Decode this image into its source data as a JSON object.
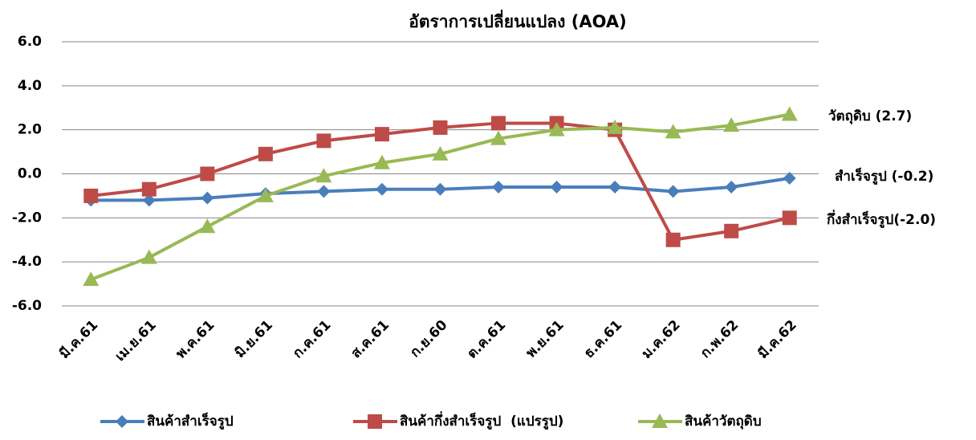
{
  "chart_data": {
    "type": "line",
    "title": "อัตราการเปลี่ยนแปลง (AOA)",
    "categories": [
      "มี.ค.61",
      "เม.ย.61",
      "พ.ค.61",
      "มิ.ย.61",
      "ก.ค.61",
      "ส.ค.61",
      "ก.ย.60",
      "ต.ค.61",
      "พ.ย.61",
      "ธ.ค.61",
      "ม.ค.62",
      "ก.พ.62",
      "มี.ค.62"
    ],
    "series": [
      {
        "name": "สินค้าสำเร็จรูป",
        "color": "#4a7ebb",
        "marker": "diamond",
        "values": [
          -1.2,
          -1.2,
          -1.1,
          -0.9,
          -0.8,
          -0.7,
          -0.7,
          -0.6,
          -0.6,
          -0.6,
          -0.8,
          -0.6,
          -0.2
        ]
      },
      {
        "name": "สินค้ากึ่งสำเร็จรูป  (แปรรูป)",
        "color": "#be4b48",
        "marker": "square",
        "values": [
          -1.0,
          -0.7,
          0.0,
          0.9,
          1.5,
          1.8,
          2.1,
          2.3,
          2.3,
          2.0,
          -3.0,
          -2.6,
          -2.0
        ]
      },
      {
        "name": "สินค้าวัตถุดิบ",
        "color": "#98b954",
        "marker": "triangle",
        "values": [
          -4.8,
          -3.8,
          -2.4,
          -1.0,
          -0.1,
          0.5,
          0.9,
          1.6,
          2.0,
          2.1,
          1.9,
          2.2,
          2.7
        ]
      }
    ],
    "ylim": [
      -6,
      6
    ],
    "yticks": [
      {
        "value": -6,
        "label": "-6.0"
      },
      {
        "value": -4,
        "label": "-4.0"
      },
      {
        "value": -2,
        "label": "-2.0"
      },
      {
        "value": 0,
        "label": "0.0"
      },
      {
        "value": 2,
        "label": "2.0"
      },
      {
        "value": 4,
        "label": "4.0"
      },
      {
        "value": 6,
        "label": "6.0"
      }
    ],
    "grid": true,
    "legend": "bottom",
    "annotations": [
      "วัตถุดิบ (2.7)",
      "สำเร็จรูป (-0.2)",
      "กึ่งสำเร็จรูป(-2.0)"
    ]
  }
}
